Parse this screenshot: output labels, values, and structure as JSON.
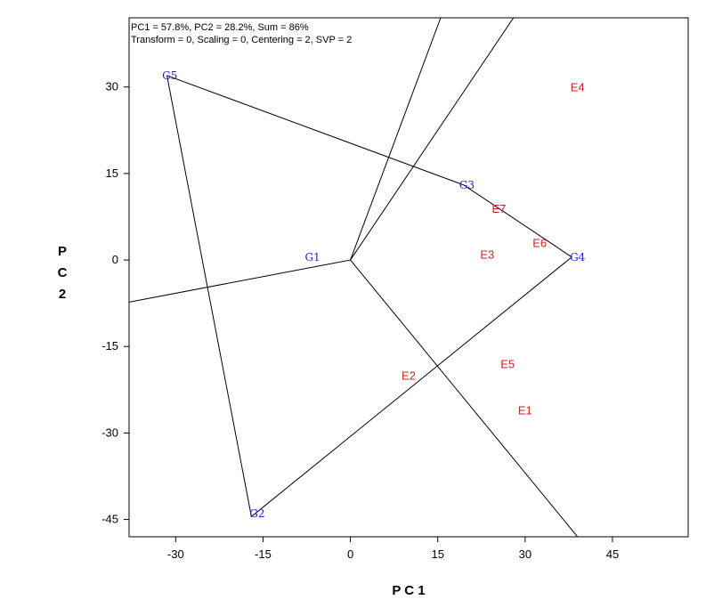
{
  "header": {
    "line1": "PC1 = 57.8%, PC2 = 28.2%, Sum = 86%",
    "line2": "Transform = 0, Scaling = 0, Centering = 2, SVP = 2"
  },
  "chart_data": {
    "type": "scatter",
    "xlabel": "P C 1",
    "ylabel_letters": [
      "P",
      "C",
      "2"
    ],
    "xlim": [
      -38,
      58
    ],
    "ylim": [
      -48,
      42
    ],
    "xticks": [
      -30,
      -15,
      0,
      15,
      30,
      45
    ],
    "yticks": [
      30,
      15,
      0,
      -15,
      -30,
      -45
    ],
    "grid": false,
    "genotypes": [
      {
        "label": "G1",
        "x": -6.5,
        "y": 0.5
      },
      {
        "label": "G2",
        "x": -16,
        "y": -44
      },
      {
        "label": "G3",
        "x": 20,
        "y": 13
      },
      {
        "label": "G4",
        "x": 39,
        "y": 0.5
      },
      {
        "label": "G5",
        "x": -31,
        "y": 32
      }
    ],
    "environments": [
      {
        "label": "E1",
        "x": 30,
        "y": -26
      },
      {
        "label": "E2",
        "x": 10,
        "y": -20
      },
      {
        "label": "E3",
        "x": 23.5,
        "y": 1
      },
      {
        "label": "E4",
        "x": 39,
        "y": 30
      },
      {
        "label": "E5",
        "x": 27,
        "y": -18
      },
      {
        "label": "E6",
        "x": 32.5,
        "y": 3
      },
      {
        "label": "E7",
        "x": 25.5,
        "y": 9
      }
    ],
    "hull": [
      {
        "x": -31.5,
        "y": 32
      },
      {
        "x": 19.5,
        "y": 13
      },
      {
        "x": 38,
        "y": 0.5
      },
      {
        "x": -17,
        "y": -44.5
      },
      {
        "x": -31.5,
        "y": 32
      }
    ],
    "rays": [
      {
        "x1": 0,
        "y1": 0,
        "x2": -38,
        "y2": -7.3
      },
      {
        "x1": 0,
        "y1": 0,
        "x2": 15.5,
        "y2": 42
      },
      {
        "x1": 0,
        "y1": 0,
        "x2": 28,
        "y2": 42
      },
      {
        "x1": 0,
        "y1": 0,
        "x2": 39,
        "y2": -48
      }
    ],
    "colors": {
      "genotype": "#2222cc",
      "environment": "#cc2222",
      "lines": "#000000"
    }
  }
}
